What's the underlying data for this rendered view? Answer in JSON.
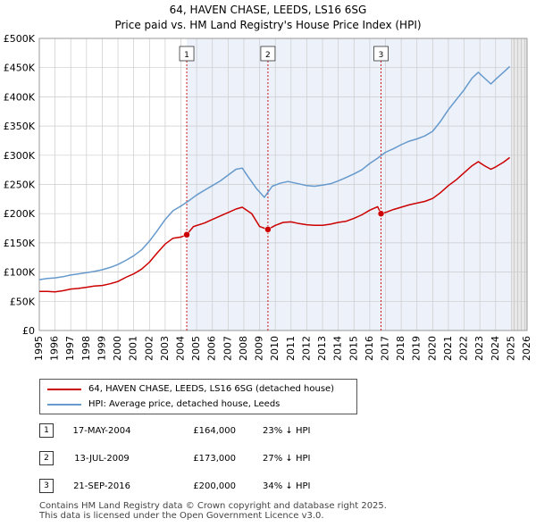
{
  "title_line1": "64, HAVEN CHASE, LEEDS, LS16 6SG",
  "title_line2": "Price paid vs. HM Land Registry's House Price Index (HPI)",
  "colors": {
    "property": "#cc0000",
    "hpi": "#6699cc",
    "shade": "#dce6f5",
    "grid": "#cccccc",
    "marker_line": "#cc0000"
  },
  "legend": {
    "property_label": "64, HAVEN CHASE, LEEDS, LS16 6SG (detached house)",
    "hpi_label": "HPI: Average price, detached house, Leeds"
  },
  "transactions": [
    {
      "num": "1",
      "date": "17-MAY-2004",
      "price": "£164,000",
      "hpi": "23% ↓ HPI"
    },
    {
      "num": "2",
      "date": "13-JUL-2009",
      "price": "£173,000",
      "hpi": "27% ↓ HPI"
    },
    {
      "num": "3",
      "date": "21-SEP-2016",
      "price": "£200,000",
      "hpi": "34% ↓ HPI"
    }
  ],
  "footer_line1": "Contains HM Land Registry data © Crown copyright and database right 2025.",
  "footer_line2": "This data is licensed under the Open Government Licence v3.0.",
  "chart_data": {
    "type": "line",
    "title": "64, HAVEN CHASE, LEEDS, LS16 6SG — Price paid vs. HM Land Registry's House Price Index (HPI)",
    "xlabel": "",
    "ylabel": "",
    "xlim": [
      1995,
      2026
    ],
    "ylim": [
      0,
      500000
    ],
    "x_ticks": [
      1995,
      1996,
      1997,
      1998,
      1999,
      2000,
      2001,
      2002,
      2003,
      2004,
      2005,
      2006,
      2007,
      2008,
      2009,
      2010,
      2011,
      2012,
      2013,
      2014,
      2015,
      2016,
      2017,
      2018,
      2019,
      2020,
      2021,
      2022,
      2023,
      2024,
      2025,
      2026
    ],
    "y_ticks": [
      0,
      50000,
      100000,
      150000,
      200000,
      250000,
      300000,
      350000,
      400000,
      450000,
      500000
    ],
    "y_tick_labels": [
      "£0",
      "£50K",
      "£100K",
      "£150K",
      "£200K",
      "£250K",
      "£300K",
      "£350K",
      "£400K",
      "£450K",
      "£500K"
    ],
    "grid": true,
    "future_shaded_from": 2025.0,
    "sale_markers": [
      {
        "label": "1",
        "x": 2004.37,
        "y": 164000
      },
      {
        "label": "2",
        "x": 2009.53,
        "y": 173000
      },
      {
        "label": "3",
        "x": 2016.72,
        "y": 200000
      }
    ],
    "series": [
      {
        "name": "64, HAVEN CHASE, LEEDS, LS16 6SG (detached house)",
        "color": "#cc0000",
        "x": [
          1995,
          1995.5,
          1996,
          1996.5,
          1997,
          1997.5,
          1998,
          1998.5,
          1999,
          1999.5,
          2000,
          2000.5,
          2001,
          2001.5,
          2002,
          2002.5,
          2003,
          2003.5,
          2004,
          2004.37,
          2004.8,
          2005.5,
          2006,
          2006.5,
          2007,
          2007.5,
          2007.9,
          2008.5,
          2009,
          2009.53,
          2010,
          2010.5,
          2011,
          2011.5,
          2012,
          2012.5,
          2013,
          2013.5,
          2014,
          2014.5,
          2015,
          2015.5,
          2016,
          2016.5,
          2016.72,
          2017,
          2017.5,
          2018,
          2018.5,
          2019,
          2019.5,
          2020,
          2020.5,
          2021,
          2021.5,
          2022,
          2022.5,
          2022.9,
          2023.3,
          2023.7,
          2024,
          2024.5,
          2024.9
        ],
        "values": [
          67000,
          67000,
          66000,
          68000,
          71000,
          72000,
          74000,
          76000,
          77000,
          80000,
          84000,
          91000,
          97000,
          105000,
          117000,
          133000,
          148000,
          158000,
          160000,
          164000,
          178000,
          184000,
          190000,
          196000,
          202000,
          208000,
          211000,
          200000,
          178000,
          173000,
          180000,
          185000,
          186000,
          183000,
          181000,
          180000,
          180000,
          182000,
          185000,
          187000,
          192000,
          198000,
          206000,
          212000,
          200000,
          202000,
          207000,
          211000,
          215000,
          218000,
          221000,
          226000,
          236000,
          248000,
          258000,
          270000,
          282000,
          289000,
          282000,
          276000,
          280000,
          288000,
          296000
        ]
      },
      {
        "name": "HPI: Average price, detached house, Leeds",
        "color": "#6699cc",
        "x": [
          1995,
          1995.5,
          1996,
          1996.5,
          1997,
          1997.5,
          1998,
          1998.5,
          1999,
          1999.5,
          2000,
          2000.5,
          2001,
          2001.5,
          2002,
          2002.5,
          2003,
          2003.5,
          2004,
          2004.5,
          2005,
          2005.5,
          2006,
          2006.5,
          2007,
          2007.5,
          2007.9,
          2008.3,
          2008.8,
          2009.3,
          2009.8,
          2010.3,
          2010.8,
          2011.5,
          2012,
          2012.5,
          2013,
          2013.5,
          2014,
          2014.5,
          2015,
          2015.5,
          2016,
          2016.5,
          2017,
          2017.5,
          2018,
          2018.5,
          2019,
          2019.5,
          2020,
          2020.5,
          2021,
          2021.5,
          2022,
          2022.5,
          2022.9,
          2023.3,
          2023.7,
          2024,
          2024.5,
          2024.9
        ],
        "values": [
          87000,
          89000,
          90000,
          92000,
          95000,
          97000,
          99000,
          101000,
          104000,
          108000,
          113000,
          120000,
          128000,
          138000,
          153000,
          171000,
          190000,
          205000,
          213000,
          222000,
          232000,
          240000,
          248000,
          256000,
          266000,
          276000,
          278000,
          262000,
          243000,
          228000,
          247000,
          252000,
          255000,
          251000,
          248000,
          247000,
          249000,
          251000,
          256000,
          262000,
          268000,
          275000,
          286000,
          295000,
          305000,
          311000,
          318000,
          324000,
          328000,
          333000,
          341000,
          358000,
          378000,
          395000,
          412000,
          432000,
          442000,
          432000,
          422000,
          430000,
          442000,
          452000
        ]
      }
    ]
  }
}
